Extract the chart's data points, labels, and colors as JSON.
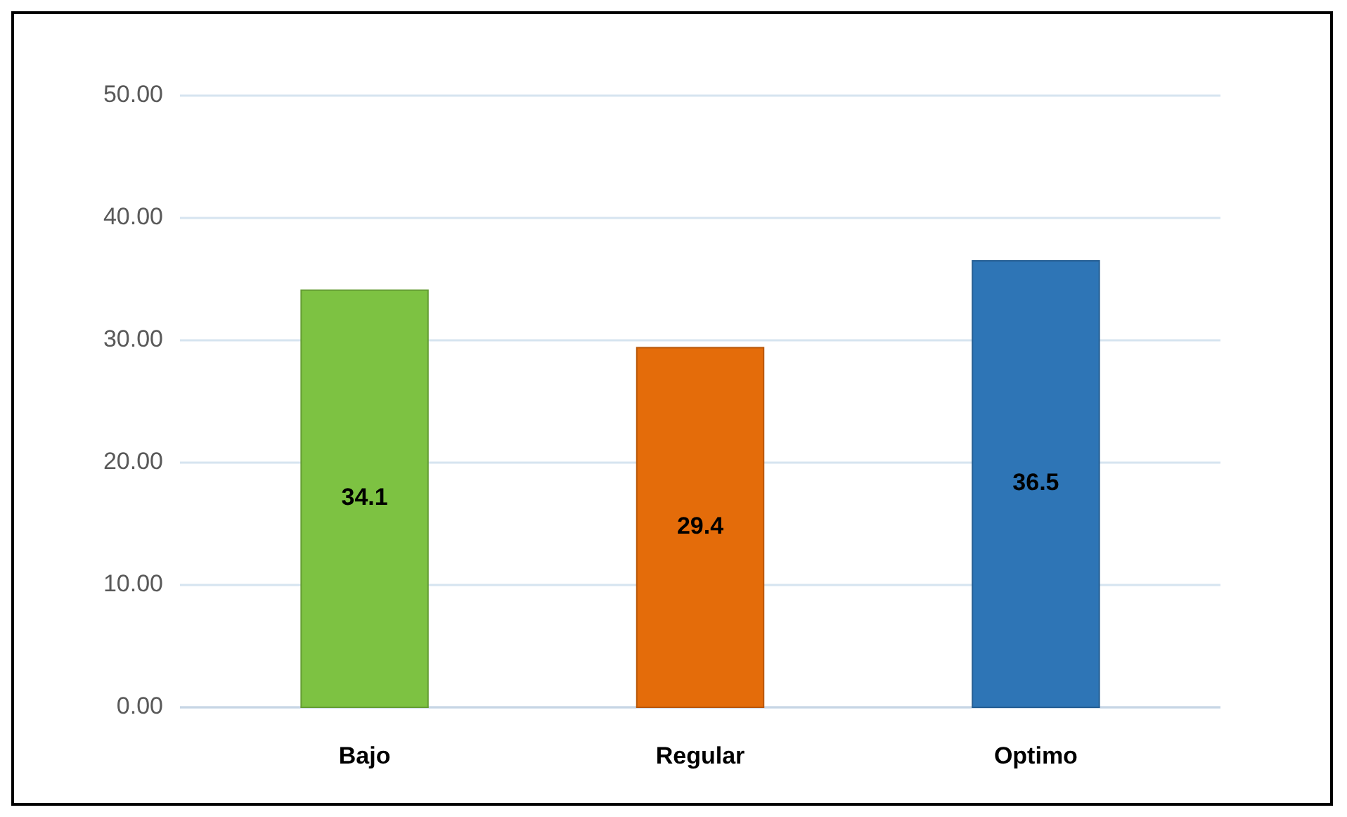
{
  "chart_data": {
    "type": "bar",
    "categories": [
      "Bajo",
      "Regular",
      "Optimo"
    ],
    "values": [
      34.1,
      29.4,
      36.5
    ],
    "colors": [
      "#7dc242",
      "#e46c0a",
      "#2e75b6"
    ],
    "ylim": [
      0,
      50
    ],
    "yticks": [
      {
        "value": 0,
        "label": "0.00"
      },
      {
        "value": 10,
        "label": "10.00"
      },
      {
        "value": 20,
        "label": "20.00"
      },
      {
        "value": 30,
        "label": "30.00"
      },
      {
        "value": 40,
        "label": "40.00"
      },
      {
        "value": 50,
        "label": "50.00"
      }
    ],
    "grid": true,
    "data_labels": true
  }
}
